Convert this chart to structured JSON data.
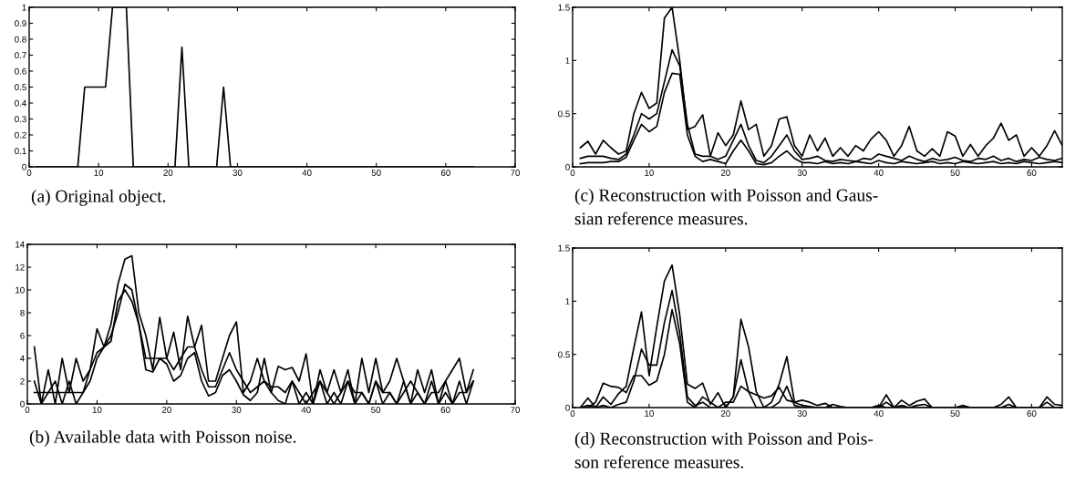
{
  "chart_data": [
    {
      "type": "line",
      "xlim": [
        0,
        70
      ],
      "ylim": [
        0,
        1
      ],
      "xticks": [
        0,
        10,
        20,
        30,
        40,
        50,
        60,
        70
      ],
      "yticks": [
        0,
        0.1,
        0.2,
        0.3,
        0.4,
        0.5,
        0.6,
        0.7,
        0.8,
        0.9,
        1
      ],
      "annotations": [
        "(a) Original object."
      ],
      "series": [
        {
          "color": "#000000",
          "x": [
            1,
            7,
            8,
            11,
            12,
            14,
            15,
            21,
            22,
            23,
            27,
            28,
            29,
            64
          ],
          "values": [
            0,
            0,
            0.5,
            0.5,
            1,
            1,
            0,
            0,
            0.75,
            0,
            0,
            0.5,
            0,
            0
          ]
        }
      ]
    },
    {
      "type": "line",
      "xlim": [
        0,
        70
      ],
      "ylim": [
        0,
        14
      ],
      "xticks": [
        0,
        10,
        20,
        30,
        40,
        50,
        60,
        70
      ],
      "yticks": [
        0,
        2,
        4,
        6,
        8,
        10,
        12,
        14
      ],
      "annotations": [
        "(b) Available data with Poisson noise."
      ],
      "x": [
        1,
        2,
        3,
        4,
        5,
        6,
        7,
        8,
        9,
        10,
        11,
        12,
        13,
        14,
        15,
        16,
        17,
        18,
        19,
        20,
        21,
        22,
        23,
        24,
        25,
        26,
        27,
        28,
        29,
        30,
        31,
        32,
        33,
        34,
        35,
        36,
        37,
        38,
        39,
        40,
        41,
        42,
        43,
        44,
        45,
        46,
        47,
        48,
        49,
        50,
        51,
        52,
        53,
        54,
        55,
        56,
        57,
        58,
        59,
        60,
        61,
        62,
        63,
        64
      ],
      "series": [
        {
          "color": "#000000",
          "values": [
            1,
            1,
            1,
            1,
            1,
            1,
            1,
            1,
            3,
            4.5,
            5,
            6,
            8,
            10.5,
            10,
            7,
            4,
            4,
            4,
            4,
            3,
            4,
            5,
            5,
            3,
            1.5,
            1.5,
            3,
            4.5,
            3,
            2,
            1,
            1.5,
            2,
            1.5,
            1.5,
            1,
            2,
            1,
            0,
            1,
            2,
            1,
            0,
            1,
            2,
            1,
            1,
            0,
            2,
            1,
            1,
            0,
            1,
            2,
            1,
            0,
            1,
            1,
            2,
            0,
            1,
            1,
            2
          ]
        },
        {
          "color": "#000000",
          "values": [
            5,
            0,
            3,
            0,
            4,
            1,
            4,
            2,
            3,
            6.6,
            5,
            7,
            10.5,
            12.7,
            13,
            8,
            6,
            3,
            7.6,
            4,
            6.3,
            3,
            7.7,
            5,
            6.9,
            2,
            2,
            4,
            6,
            7.2,
            1,
            2,
            4,
            2,
            1,
            3.3,
            3,
            3.2,
            2,
            4.4,
            0,
            3,
            1,
            3,
            1,
            3,
            0,
            4,
            1,
            4,
            1,
            2,
            4,
            2,
            0,
            3,
            1,
            3,
            0,
            2,
            3,
            4,
            1,
            3
          ]
        },
        {
          "color": "#000000",
          "values": [
            2,
            0,
            1,
            2,
            0,
            2,
            0,
            1,
            2,
            4,
            5,
            5.5,
            9,
            10,
            9,
            7,
            3,
            2.8,
            4,
            3.5,
            2,
            2.5,
            4,
            4.5,
            2,
            0.7,
            1,
            2.5,
            3,
            2,
            0.8,
            0.3,
            1,
            4,
            1,
            0.3,
            0,
            2,
            0,
            1,
            0,
            2,
            0,
            1,
            0,
            2,
            0,
            1,
            0,
            2,
            0,
            1,
            0,
            2,
            0,
            1,
            0,
            2,
            0,
            1,
            0,
            2,
            0,
            2
          ]
        }
      ]
    },
    {
      "type": "line",
      "xlim": [
        0,
        64
      ],
      "ylim": [
        0,
        1.5
      ],
      "xticks": [
        0,
        10,
        20,
        30,
        40,
        50,
        60
      ],
      "yticks": [
        0,
        0.5,
        1,
        1.5
      ],
      "annotations": [
        "(c) Reconstruction with Poisson and Gaus-\nsian reference measures."
      ],
      "x": [
        1,
        2,
        3,
        4,
        5,
        6,
        7,
        8,
        9,
        10,
        11,
        12,
        13,
        14,
        15,
        16,
        17,
        18,
        19,
        20,
        21,
        22,
        23,
        24,
        25,
        26,
        27,
        28,
        29,
        30,
        31,
        32,
        33,
        34,
        35,
        36,
        37,
        38,
        39,
        40,
        41,
        42,
        43,
        44,
        45,
        46,
        47,
        48,
        49,
        50,
        51,
        52,
        53,
        54,
        55,
        56,
        57,
        58,
        59,
        60,
        61,
        62,
        63,
        64
      ],
      "series": [
        {
          "color": "#000000",
          "values": [
            0.08,
            0.1,
            0.1,
            0.1,
            0.08,
            0.07,
            0.12,
            0.3,
            0.5,
            0.45,
            0.5,
            0.8,
            1.1,
            0.95,
            0.4,
            0.12,
            0.1,
            0.1,
            0.07,
            0.1,
            0.25,
            0.4,
            0.2,
            0.06,
            0.04,
            0.1,
            0.2,
            0.3,
            0.15,
            0.07,
            0.08,
            0.1,
            0.06,
            0.05,
            0.07,
            0.06,
            0.05,
            0.08,
            0.07,
            0.12,
            0.1,
            0.08,
            0.06,
            0.1,
            0.07,
            0.05,
            0.08,
            0.06,
            0.07,
            0.09,
            0.06,
            0.05,
            0.08,
            0.07,
            0.1,
            0.06,
            0.08,
            0.05,
            0.07,
            0.06,
            0.09,
            0.07,
            0.06,
            0.08
          ]
        },
        {
          "color": "#000000",
          "values": [
            0.18,
            0.24,
            0.12,
            0.25,
            0.18,
            0.12,
            0.15,
            0.5,
            0.7,
            0.55,
            0.6,
            1.4,
            1.5,
            1.0,
            0.35,
            0.38,
            0.49,
            0.1,
            0.32,
            0.2,
            0.3,
            0.62,
            0.35,
            0.4,
            0.1,
            0.2,
            0.45,
            0.47,
            0.2,
            0.1,
            0.3,
            0.15,
            0.27,
            0.1,
            0.18,
            0.1,
            0.2,
            0.15,
            0.26,
            0.33,
            0.25,
            0.1,
            0.2,
            0.38,
            0.15,
            0.1,
            0.17,
            0.1,
            0.33,
            0.29,
            0.1,
            0.21,
            0.1,
            0.2,
            0.27,
            0.41,
            0.25,
            0.3,
            0.1,
            0.18,
            0.1,
            0.2,
            0.34,
            0.2
          ]
        },
        {
          "color": "#000000",
          "values": [
            0.03,
            0.04,
            0.04,
            0.04,
            0.05,
            0.05,
            0.09,
            0.25,
            0.4,
            0.33,
            0.38,
            0.7,
            0.88,
            0.87,
            0.3,
            0.1,
            0.05,
            0.07,
            0.05,
            0.03,
            0.15,
            0.25,
            0.15,
            0.03,
            0.02,
            0.04,
            0.1,
            0.15,
            0.08,
            0.04,
            0.04,
            0.03,
            0.05,
            0.03,
            0.04,
            0.03,
            0.05,
            0.04,
            0.03,
            0.06,
            0.04,
            0.03,
            0.05,
            0.04,
            0.03,
            0.04,
            0.05,
            0.03,
            0.04,
            0.03,
            0.05,
            0.04,
            0.03,
            0.04,
            0.05,
            0.03,
            0.04,
            0.03,
            0.05,
            0.04,
            0.03,
            0.04,
            0.05,
            0.04
          ]
        }
      ]
    },
    {
      "type": "line",
      "xlim": [
        0,
        64
      ],
      "ylim": [
        0,
        1.5
      ],
      "xticks": [
        0,
        10,
        20,
        30,
        40,
        50,
        60
      ],
      "yticks": [
        0,
        0.5,
        1,
        1.5
      ],
      "annotations": [
        "(d) Reconstruction with Poisson and Pois-\nson reference measures."
      ],
      "x": [
        1,
        2,
        3,
        4,
        5,
        6,
        7,
        8,
        9,
        10,
        11,
        12,
        13,
        14,
        15,
        16,
        17,
        18,
        19,
        20,
        21,
        22,
        23,
        24,
        25,
        26,
        27,
        28,
        29,
        30,
        31,
        32,
        33,
        34,
        35,
        36,
        37,
        38,
        39,
        40,
        41,
        42,
        43,
        44,
        45,
        46,
        47,
        48,
        49,
        50,
        51,
        52,
        53,
        54,
        55,
        56,
        57,
        58,
        59,
        60,
        61,
        62,
        63,
        64
      ],
      "series": [
        {
          "color": "#000000",
          "values": [
            0,
            0.02,
            0,
            0.02,
            0,
            0.03,
            0.05,
            0.25,
            0.55,
            0.4,
            0.4,
            0.8,
            1.1,
            0.7,
            0.1,
            0.02,
            0.05,
            0,
            0,
            0,
            0.1,
            0.45,
            0.15,
            0,
            0,
            0,
            0.05,
            0.2,
            0.02,
            0,
            0,
            0,
            0,
            0,
            0,
            0,
            0,
            0,
            0,
            0,
            0.05,
            0,
            0.02,
            0,
            0.02,
            0.03,
            0,
            0,
            0,
            0,
            0,
            0,
            0,
            0,
            0,
            0,
            0.03,
            0,
            0,
            0,
            0,
            0.05,
            0,
            0
          ]
        },
        {
          "color": "#000000",
          "values": [
            0,
            0.09,
            0,
            0.1,
            0.03,
            0.13,
            0.2,
            0.56,
            0.9,
            0.3,
            0.76,
            1.19,
            1.34,
            0.87,
            0.22,
            0.18,
            0.23,
            0.03,
            0.14,
            0,
            0.1,
            0.83,
            0.57,
            0.15,
            0,
            0.05,
            0.22,
            0.48,
            0.05,
            0.07,
            0.05,
            0.02,
            0.04,
            0,
            0,
            0,
            0,
            0,
            0,
            0,
            0.12,
            0,
            0.07,
            0.02,
            0.06,
            0.08,
            0,
            0,
            0,
            0,
            0.02,
            0,
            0,
            0,
            0,
            0.03,
            0.1,
            0,
            0,
            0,
            0,
            0.1,
            0.03,
            0.02
          ]
        },
        {
          "color": "#000000",
          "values": [
            0,
            0,
            0.05,
            0.23,
            0.2,
            0.19,
            0.14,
            0.3,
            0.3,
            0.21,
            0.25,
            0.5,
            0.92,
            0.6,
            0.05,
            0,
            0.1,
            0.05,
            0,
            0.05,
            0.05,
            0.2,
            0.15,
            0.12,
            0.09,
            0.11,
            0.19,
            0.07,
            0.05,
            0.02,
            0.01,
            0,
            0,
            0.03,
            0.01,
            0,
            0,
            0,
            0,
            0.02,
            0,
            0,
            0,
            0,
            0,
            0,
            0,
            0,
            0,
            0,
            0,
            0,
            0,
            0,
            0,
            0,
            0,
            0,
            0,
            0,
            0,
            0,
            0,
            0
          ]
        }
      ]
    }
  ]
}
